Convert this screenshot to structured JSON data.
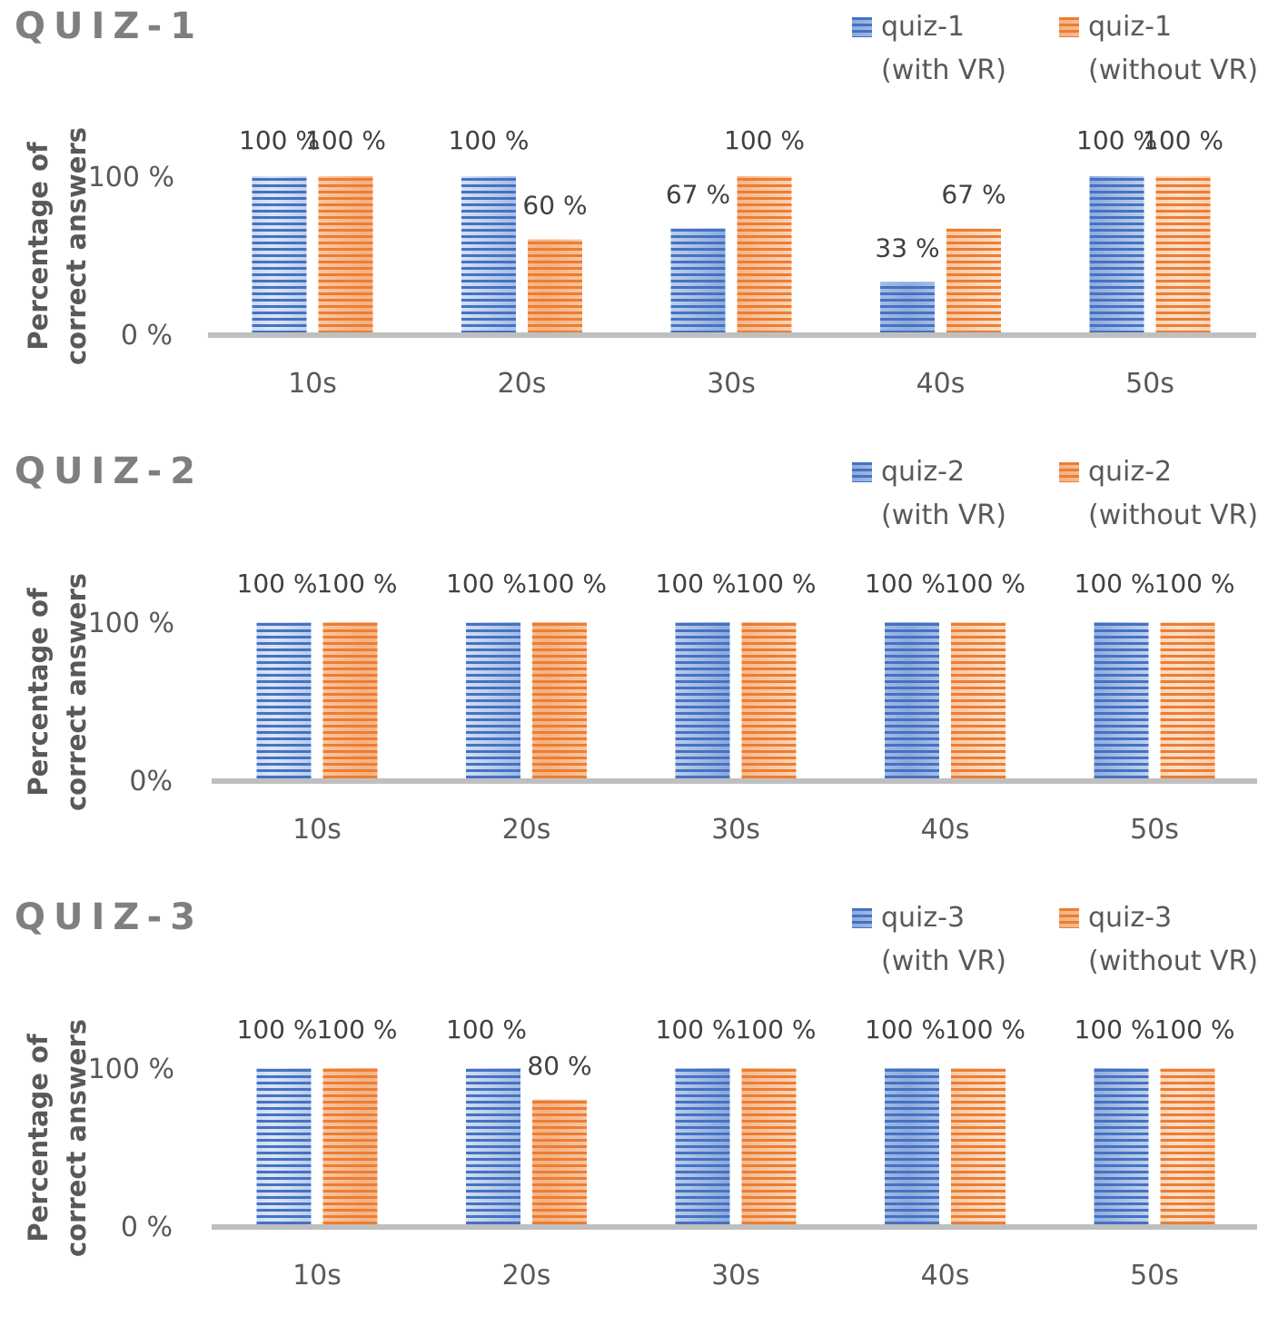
{
  "colors": {
    "with_vr": "#4472c4",
    "without_vr": "#ed7d31",
    "axis": "#bfbfbf",
    "title": "#7f7f7f",
    "text": "#595959",
    "label": "#404040"
  },
  "chart_data": [
    {
      "type": "bar",
      "title": "QUIZ-1",
      "ylabel": "Percentage of correct answers",
      "ylabel_lines": [
        "Percentage of",
        "correct answers"
      ],
      "xlabel": "",
      "categories": [
        "10s",
        "20s",
        "30s",
        "40s",
        "50s"
      ],
      "yticks": [
        "0 %",
        "100 %"
      ],
      "ylim": [
        0,
        100
      ],
      "grid": false,
      "legend": "top-right",
      "series": [
        {
          "name": "quiz-1 (with VR)",
          "legend_lines": [
            "quiz-1",
            "(with VR)"
          ],
          "values": [
            100,
            100,
            67,
            33,
            100
          ],
          "labels": [
            "100 %",
            "100 %",
            "67 %",
            "33 %",
            "100 %"
          ]
        },
        {
          "name": "quiz-1 (without VR)",
          "legend_lines": [
            "quiz-1",
            "(without VR)"
          ],
          "values": [
            100,
            60,
            100,
            67,
            100
          ],
          "labels": [
            "100 %",
            "60 %",
            "100 %",
            "67 %",
            "100 %"
          ]
        }
      ]
    },
    {
      "type": "bar",
      "title": "QUIZ-2",
      "ylabel": "Percentage of correct answers",
      "ylabel_lines": [
        "Percentage of",
        "correct answers"
      ],
      "xlabel": "",
      "categories": [
        "10s",
        "20s",
        "30s",
        "40s",
        "50s"
      ],
      "yticks": [
        "0%",
        "100 %"
      ],
      "ylim": [
        0,
        100
      ],
      "grid": false,
      "legend": "top-right",
      "series": [
        {
          "name": "quiz-2 (with VR)",
          "legend_lines": [
            "quiz-2",
            "(with VR)"
          ],
          "values": [
            100,
            100,
            100,
            100,
            100
          ],
          "labels": [
            "100 %",
            "100 %",
            "100 %",
            "100 %",
            "100 %"
          ]
        },
        {
          "name": "quiz-2 (without VR)",
          "legend_lines": [
            "quiz-2",
            "(without VR)"
          ],
          "values": [
            100,
            100,
            100,
            100,
            100
          ],
          "labels": [
            "100 %",
            "100 %",
            "100 %",
            "100 %",
            "100 %"
          ]
        }
      ]
    },
    {
      "type": "bar",
      "title": "QUIZ-3",
      "ylabel": "Percentage of correct answers",
      "ylabel_lines": [
        "Percentage of",
        "correct answers"
      ],
      "xlabel": "",
      "categories": [
        "10s",
        "20s",
        "30s",
        "40s",
        "50s"
      ],
      "yticks": [
        "0 %",
        "100 %"
      ],
      "ylim": [
        0,
        100
      ],
      "grid": false,
      "legend": "top-right",
      "series": [
        {
          "name": "quiz-3 (with VR)",
          "legend_lines": [
            "quiz-3",
            "(with VR)"
          ],
          "values": [
            100,
            100,
            100,
            100,
            100
          ],
          "labels": [
            "100 %",
            "100 %",
            "100 %",
            "100 %",
            "100 %"
          ]
        },
        {
          "name": "quiz-3 (without VR)",
          "legend_lines": [
            "quiz-3",
            "(without VR)"
          ],
          "values": [
            100,
            80,
            100,
            100,
            100
          ],
          "labels": [
            "100 %",
            "80 %",
            "100 %",
            "100 %",
            "100 %"
          ]
        }
      ]
    }
  ]
}
